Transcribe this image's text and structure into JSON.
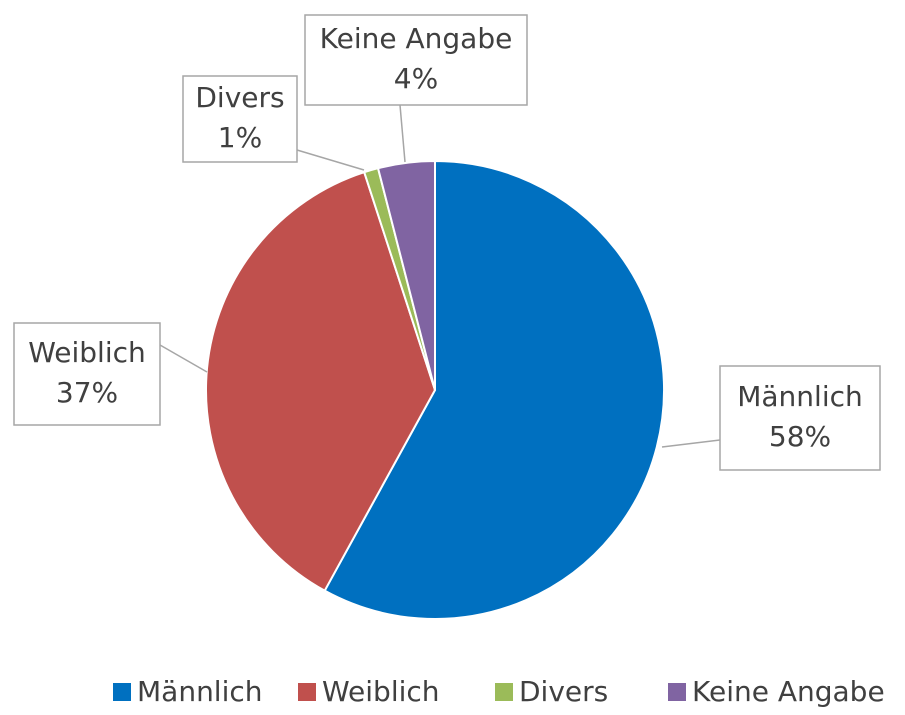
{
  "chart_data": {
    "type": "pie",
    "categories": [
      "Männlich",
      "Weiblich",
      "Divers",
      "Keine Angabe"
    ],
    "values": [
      58,
      37,
      1,
      4
    ],
    "value_labels": [
      "58%",
      "37%",
      "1%",
      "4%"
    ],
    "colors": [
      "#0070c0",
      "#c0504d",
      "#9bbb59",
      "#8064a2"
    ],
    "legend": "bottom"
  }
}
